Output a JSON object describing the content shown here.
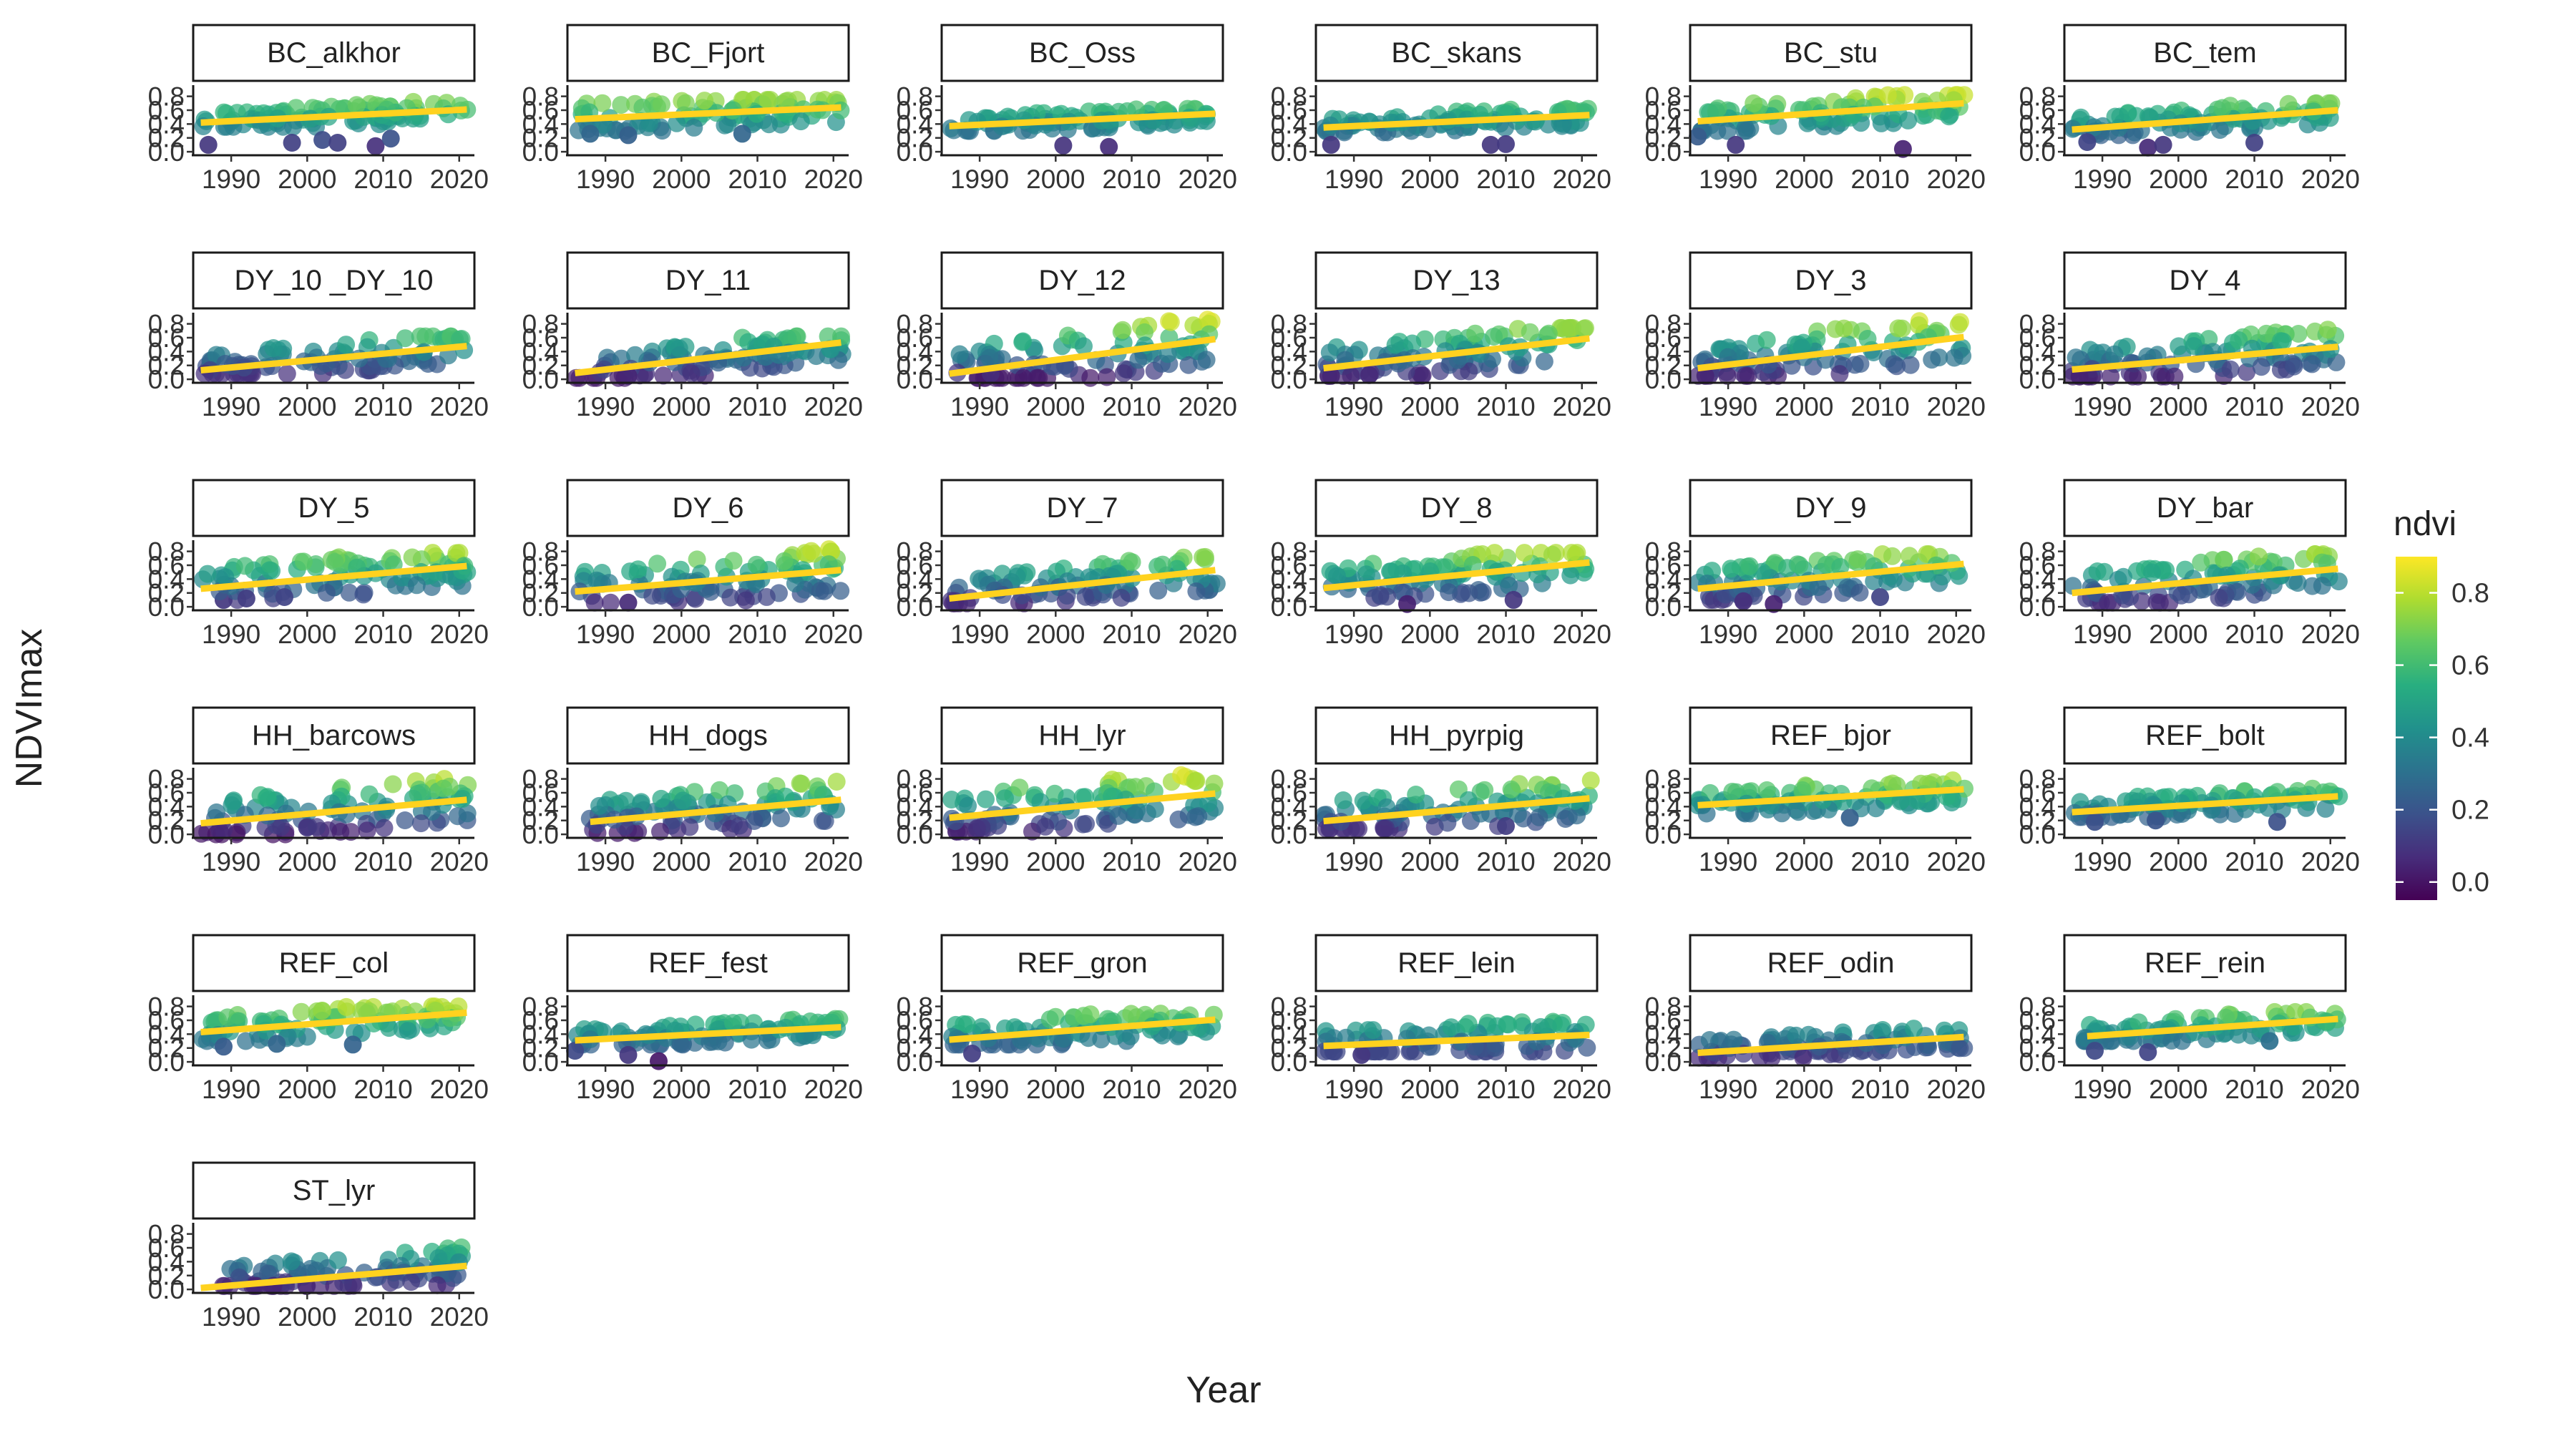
{
  "chart_data": {
    "type": "scatter",
    "xlabel": "Year",
    "ylabel": "NDVImax",
    "xticks": [
      1990,
      2000,
      2010,
      2020
    ],
    "xlim": [
      1985,
      2022
    ],
    "yticks": [
      0.0,
      0.2,
      0.4,
      0.6,
      0.8
    ],
    "ylim": [
      -0.03,
      0.92
    ],
    "trend_line_color": "#FFD21F",
    "color_scale": {
      "name": "viridis",
      "title": "ndvi",
      "domain": [
        -0.05,
        0.9
      ],
      "ticks": [
        0.0,
        0.2,
        0.4,
        0.6,
        0.8
      ]
    },
    "layout": {
      "ncol": 6
    },
    "panels": [
      {
        "name": "BC_alkhor",
        "trend": [
          [
            1986,
            0.42
          ],
          [
            2021,
            0.61
          ]
        ],
        "band": [
          0.36,
          0.72
        ],
        "outliers": [
          [
            1987,
            0.1
          ],
          [
            1998,
            0.13
          ],
          [
            2002,
            0.17
          ],
          [
            2004,
            0.13
          ],
          [
            2009,
            0.08
          ],
          [
            2011,
            0.19
          ]
        ]
      },
      {
        "name": "BC_Fjort",
        "trend": [
          [
            1986,
            0.47
          ],
          [
            2021,
            0.64
          ]
        ],
        "band": [
          0.22,
          0.75
        ],
        "outliers": [
          [
            1988,
            0.26
          ],
          [
            1993,
            0.24
          ],
          [
            2008,
            0.26
          ]
        ]
      },
      {
        "name": "BC_Oss",
        "trend": [
          [
            1986,
            0.37
          ],
          [
            2021,
            0.55
          ]
        ],
        "band": [
          0.3,
          0.62
        ],
        "outliers": [
          [
            2001,
            0.09
          ],
          [
            2007,
            0.07
          ]
        ]
      },
      {
        "name": "BC_skans",
        "trend": [
          [
            1986,
            0.35
          ],
          [
            2021,
            0.53
          ]
        ],
        "band": [
          0.28,
          0.62
        ],
        "outliers": [
          [
            1987,
            0.1
          ],
          [
            2008,
            0.1
          ],
          [
            2010,
            0.11
          ]
        ]
      },
      {
        "name": "BC_stu",
        "trend": [
          [
            1986,
            0.44
          ],
          [
            2021,
            0.7
          ]
        ],
        "band": [
          0.3,
          0.82
        ],
        "outliers": [
          [
            1986,
            0.22
          ],
          [
            1991,
            0.1
          ],
          [
            2013,
            0.04
          ]
        ]
      },
      {
        "name": "BC_tem",
        "trend": [
          [
            1986,
            0.32
          ],
          [
            2021,
            0.6
          ]
        ],
        "band": [
          0.24,
          0.7
        ],
        "outliers": [
          [
            1988,
            0.14
          ],
          [
            1996,
            0.06
          ],
          [
            1998,
            0.1
          ],
          [
            2010,
            0.13
          ]
        ]
      },
      {
        "name": "DY_10 _DY_10",
        "trend": [
          [
            1986,
            0.13
          ],
          [
            2021,
            0.48
          ]
        ],
        "band": [
          0.08,
          0.62
        ],
        "outliers": []
      },
      {
        "name": "DY_11",
        "trend": [
          [
            1986,
            0.09
          ],
          [
            2021,
            0.53
          ]
        ],
        "band": [
          0.02,
          0.62
        ],
        "outliers": [
          [
            1993,
            0.05
          ]
        ]
      },
      {
        "name": "DY_12",
        "trend": [
          [
            1986,
            0.08
          ],
          [
            2021,
            0.58
          ]
        ],
        "band": [
          0.02,
          0.86
        ],
        "outliers": []
      },
      {
        "name": "DY_13",
        "trend": [
          [
            1986,
            0.16
          ],
          [
            2021,
            0.59
          ]
        ],
        "band": [
          0.05,
          0.74
        ],
        "outliers": [
          [
            1987,
            0.05
          ],
          [
            1992,
            0.06
          ]
        ]
      },
      {
        "name": "DY_3",
        "trend": [
          [
            1986,
            0.16
          ],
          [
            2021,
            0.61
          ]
        ],
        "band": [
          0.05,
          0.84
        ],
        "outliers": [
          [
            1987,
            0.05
          ]
        ]
      },
      {
        "name": "DY_4",
        "trend": [
          [
            1986,
            0.14
          ],
          [
            2021,
            0.47
          ]
        ],
        "band": [
          0.04,
          0.72
        ],
        "outliers": [
          [
            1987,
            0.04
          ]
        ]
      },
      {
        "name": "DY_5",
        "trend": [
          [
            1986,
            0.26
          ],
          [
            2021,
            0.59
          ]
        ],
        "band": [
          0.1,
          0.78
        ],
        "outliers": [
          [
            1992,
            0.12
          ],
          [
            1997,
            0.14
          ]
        ]
      },
      {
        "name": "DY_6",
        "trend": [
          [
            1986,
            0.22
          ],
          [
            2021,
            0.53
          ]
        ],
        "band": [
          0.06,
          0.86
        ],
        "outliers": [
          [
            1993,
            0.06
          ]
        ]
      },
      {
        "name": "DY_7",
        "trend": [
          [
            1986,
            0.12
          ],
          [
            2021,
            0.53
          ]
        ],
        "band": [
          0.05,
          0.72
        ],
        "outliers": []
      },
      {
        "name": "DY_8",
        "trend": [
          [
            1986,
            0.27
          ],
          [
            2021,
            0.64
          ]
        ],
        "band": [
          0.1,
          0.78
        ],
        "outliers": [
          [
            1997,
            0.04
          ],
          [
            2011,
            0.1
          ]
        ]
      },
      {
        "name": "DY_9",
        "trend": [
          [
            1986,
            0.26
          ],
          [
            2021,
            0.62
          ]
        ],
        "band": [
          0.1,
          0.76
        ],
        "outliers": [
          [
            1992,
            0.08
          ],
          [
            1996,
            0.04
          ],
          [
            2010,
            0.14
          ]
        ]
      },
      {
        "name": "DY_bar",
        "trend": [
          [
            1986,
            0.2
          ],
          [
            2021,
            0.55
          ]
        ],
        "band": [
          0.06,
          0.76
        ],
        "outliers": []
      },
      {
        "name": "HH_barcows",
        "trend": [
          [
            1986,
            0.16
          ],
          [
            2021,
            0.5
          ]
        ],
        "band": [
          0.0,
          0.8
        ],
        "outliers": []
      },
      {
        "name": "HH_dogs",
        "trend": [
          [
            1988,
            0.18
          ],
          [
            2021,
            0.5
          ]
        ],
        "band": [
          0.02,
          0.76
        ],
        "outliers": []
      },
      {
        "name": "HH_lyr",
        "trend": [
          [
            1986,
            0.24
          ],
          [
            2021,
            0.59
          ]
        ],
        "band": [
          0.04,
          0.86
        ],
        "outliers": []
      },
      {
        "name": "HH_pyrpig",
        "trend": [
          [
            1986,
            0.19
          ],
          [
            2021,
            0.52
          ]
        ],
        "band": [
          0.08,
          0.78
        ],
        "outliers": [
          [
            2010,
            0.12
          ]
        ]
      },
      {
        "name": "REF_bjor",
        "trend": [
          [
            1986,
            0.42
          ],
          [
            2021,
            0.65
          ]
        ],
        "band": [
          0.3,
          0.78
        ],
        "outliers": [
          [
            2006,
            0.24
          ]
        ]
      },
      {
        "name": "REF_bolt",
        "trend": [
          [
            1986,
            0.32
          ],
          [
            2021,
            0.55
          ]
        ],
        "band": [
          0.25,
          0.66
        ],
        "outliers": [
          [
            1989,
            0.18
          ],
          [
            1997,
            0.2
          ],
          [
            2013,
            0.18
          ]
        ]
      },
      {
        "name": "REF_col",
        "trend": [
          [
            1986,
            0.43
          ],
          [
            2021,
            0.71
          ]
        ],
        "band": [
          0.3,
          0.8
        ],
        "outliers": [
          [
            1989,
            0.22
          ],
          [
            1996,
            0.26
          ],
          [
            2006,
            0.25
          ]
        ]
      },
      {
        "name": "REF_fest",
        "trend": [
          [
            1986,
            0.31
          ],
          [
            2021,
            0.5
          ]
        ],
        "band": [
          0.25,
          0.62
        ],
        "outliers": [
          [
            1986,
            0.16
          ],
          [
            1993,
            0.1
          ],
          [
            1997,
            0.01
          ]
        ]
      },
      {
        "name": "REF_gron",
        "trend": [
          [
            1986,
            0.32
          ],
          [
            2021,
            0.61
          ]
        ],
        "band": [
          0.25,
          0.76
        ],
        "outliers": [
          [
            1989,
            0.12
          ]
        ]
      },
      {
        "name": "REF_lein",
        "trend": [
          [
            1986,
            0.23
          ],
          [
            2021,
            0.39
          ]
        ],
        "band": [
          0.15,
          0.72
        ],
        "outliers": [
          [
            1991,
            0.1
          ]
        ]
      },
      {
        "name": "REF_odin",
        "trend": [
          [
            1986,
            0.13
          ],
          [
            2021,
            0.36
          ]
        ],
        "band": [
          0.06,
          0.48
        ],
        "outliers": []
      },
      {
        "name": "REF_rein",
        "trend": [
          [
            1988,
            0.37
          ],
          [
            2021,
            0.62
          ]
        ],
        "band": [
          0.3,
          0.72
        ],
        "outliers": [
          [
            1989,
            0.16
          ],
          [
            1996,
            0.14
          ],
          [
            2012,
            0.3
          ]
        ]
      },
      {
        "name": "ST_lyr",
        "trend": [
          [
            1986,
            0.02
          ],
          [
            2021,
            0.34
          ]
        ],
        "band": [
          0.05,
          0.72
        ],
        "outliers": []
      }
    ]
  }
}
